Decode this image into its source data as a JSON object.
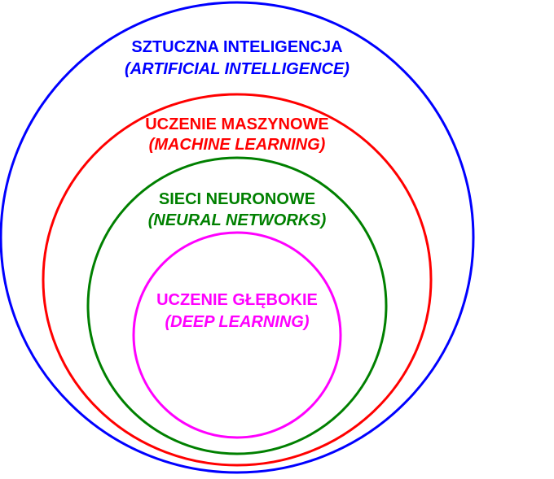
{
  "diagram": {
    "type": "nested-venn",
    "sets": [
      {
        "id": "ai",
        "title": "SZTUCZNA INTELIGENCJA",
        "subtitle": "(ARTIFICIAL INTELLIGENCE)",
        "color": "#0000ff"
      },
      {
        "id": "ml",
        "title": "UCZENIE MASZYNOWE",
        "subtitle": "(MACHINE LEARNING)",
        "color": "#ff0000"
      },
      {
        "id": "nn",
        "title": "SIECI NEURONOWE",
        "subtitle": "(NEURAL NETWORKS)",
        "color": "#008000"
      },
      {
        "id": "dl",
        "title": "UCZENIE GŁĘBOKIE",
        "subtitle": "(DEEP LEARNING)",
        "color": "#ff00ff"
      }
    ]
  }
}
